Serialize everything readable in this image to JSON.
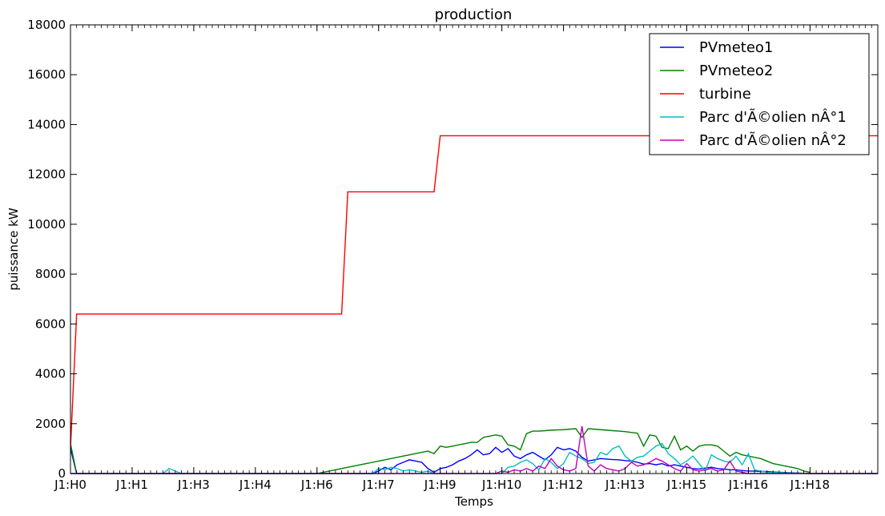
{
  "chart_data": {
    "type": "line",
    "title": "production",
    "xlabel": "Temps",
    "ylabel": "puissance kW",
    "xlim": [
      0,
      131
    ],
    "ylim": [
      0,
      18000
    ],
    "yticks": [
      0,
      2000,
      4000,
      6000,
      8000,
      10000,
      12000,
      14000,
      16000,
      18000
    ],
    "xticks": [
      {
        "x": 0,
        "label": "J1:H0"
      },
      {
        "x": 10,
        "label": "J1:H1"
      },
      {
        "x": 20,
        "label": "J1:H3"
      },
      {
        "x": 30,
        "label": "J1:H4"
      },
      {
        "x": 40,
        "label": "J1:H6"
      },
      {
        "x": 50,
        "label": "J1:H7"
      },
      {
        "x": 60,
        "label": "J1:H9"
      },
      {
        "x": 70,
        "label": "J1:H10"
      },
      {
        "x": 80,
        "label": "J1:H12"
      },
      {
        "x": 90,
        "label": "J1:H13"
      },
      {
        "x": 100,
        "label": "J1:H15"
      },
      {
        "x": 110,
        "label": "J1:H16"
      },
      {
        "x": 120,
        "label": "J1:H18"
      }
    ],
    "legend_position": "top-right",
    "series": [
      {
        "name": "PVmeteo1",
        "color": "#0000ff",
        "points": [
          [
            0,
            1000
          ],
          [
            1,
            0
          ],
          [
            49,
            0
          ],
          [
            50,
            100
          ],
          [
            51,
            250
          ],
          [
            52,
            150
          ],
          [
            53,
            350
          ],
          [
            54,
            450
          ],
          [
            55,
            550
          ],
          [
            56,
            500
          ],
          [
            57,
            450
          ],
          [
            58,
            200
          ],
          [
            59,
            50
          ],
          [
            60,
            200
          ],
          [
            61,
            250
          ],
          [
            62,
            350
          ],
          [
            63,
            500
          ],
          [
            64,
            600
          ],
          [
            65,
            750
          ],
          [
            66,
            950
          ],
          [
            67,
            750
          ],
          [
            68,
            800
          ],
          [
            69,
            1050
          ],
          [
            70,
            850
          ],
          [
            71,
            1000
          ],
          [
            72,
            700
          ],
          [
            73,
            600
          ],
          [
            74,
            750
          ],
          [
            75,
            850
          ],
          [
            76,
            700
          ],
          [
            77,
            550
          ],
          [
            78,
            750
          ],
          [
            79,
            1050
          ],
          [
            80,
            950
          ],
          [
            81,
            1000
          ],
          [
            82,
            900
          ],
          [
            83,
            650
          ],
          [
            84,
            500
          ],
          [
            85,
            550
          ],
          [
            86,
            600
          ],
          [
            87,
            580
          ],
          [
            88,
            560
          ],
          [
            89,
            550
          ],
          [
            90,
            520
          ],
          [
            91,
            500
          ],
          [
            92,
            450
          ],
          [
            93,
            380
          ],
          [
            94,
            400
          ],
          [
            95,
            350
          ],
          [
            96,
            400
          ],
          [
            97,
            300
          ],
          [
            98,
            350
          ],
          [
            99,
            300
          ],
          [
            100,
            250
          ],
          [
            101,
            200
          ],
          [
            102,
            180
          ],
          [
            103,
            220
          ],
          [
            104,
            250
          ],
          [
            105,
            200
          ],
          [
            106,
            180
          ],
          [
            107,
            150
          ],
          [
            108,
            150
          ],
          [
            109,
            120
          ],
          [
            110,
            100
          ],
          [
            111,
            100
          ],
          [
            112,
            80
          ],
          [
            113,
            80
          ],
          [
            114,
            60
          ],
          [
            115,
            50
          ],
          [
            116,
            40
          ],
          [
            117,
            30
          ],
          [
            118,
            20
          ],
          [
            119,
            10
          ],
          [
            120,
            0
          ],
          [
            131,
            0
          ]
        ]
      },
      {
        "name": "PVmeteo2",
        "color": "#008000",
        "points": [
          [
            0,
            1200
          ],
          [
            1,
            0
          ],
          [
            40,
            0
          ],
          [
            41,
            50
          ],
          [
            42,
            100
          ],
          [
            43,
            150
          ],
          [
            44,
            200
          ],
          [
            45,
            250
          ],
          [
            46,
            300
          ],
          [
            47,
            350
          ],
          [
            48,
            400
          ],
          [
            49,
            450
          ],
          [
            50,
            500
          ],
          [
            51,
            550
          ],
          [
            52,
            600
          ],
          [
            53,
            650
          ],
          [
            54,
            700
          ],
          [
            55,
            750
          ],
          [
            56,
            800
          ],
          [
            57,
            850
          ],
          [
            58,
            900
          ],
          [
            59,
            800
          ],
          [
            60,
            1100
          ],
          [
            61,
            1050
          ],
          [
            62,
            1100
          ],
          [
            63,
            1150
          ],
          [
            64,
            1200
          ],
          [
            65,
            1250
          ],
          [
            66,
            1250
          ],
          [
            67,
            1450
          ],
          [
            68,
            1500
          ],
          [
            69,
            1550
          ],
          [
            70,
            1500
          ],
          [
            71,
            1150
          ],
          [
            72,
            1100
          ],
          [
            73,
            950
          ],
          [
            74,
            1600
          ],
          [
            75,
            1700
          ],
          [
            76,
            1700
          ],
          [
            77,
            1720
          ],
          [
            78,
            1740
          ],
          [
            79,
            1750
          ],
          [
            80,
            1760
          ],
          [
            81,
            1780
          ],
          [
            82,
            1800
          ],
          [
            83,
            1450
          ],
          [
            84,
            1800
          ],
          [
            85,
            1780
          ],
          [
            86,
            1760
          ],
          [
            87,
            1740
          ],
          [
            88,
            1720
          ],
          [
            89,
            1700
          ],
          [
            90,
            1680
          ],
          [
            91,
            1650
          ],
          [
            92,
            1620
          ],
          [
            93,
            1100
          ],
          [
            94,
            1550
          ],
          [
            95,
            1500
          ],
          [
            96,
            1050
          ],
          [
            97,
            1000
          ],
          [
            98,
            1500
          ],
          [
            99,
            950
          ],
          [
            100,
            1100
          ],
          [
            101,
            900
          ],
          [
            102,
            1100
          ],
          [
            103,
            1150
          ],
          [
            104,
            1150
          ],
          [
            105,
            1100
          ],
          [
            106,
            900
          ],
          [
            107,
            700
          ],
          [
            108,
            850
          ],
          [
            109,
            750
          ],
          [
            110,
            700
          ],
          [
            111,
            650
          ],
          [
            112,
            600
          ],
          [
            113,
            500
          ],
          [
            114,
            400
          ],
          [
            115,
            350
          ],
          [
            116,
            300
          ],
          [
            117,
            250
          ],
          [
            118,
            200
          ],
          [
            119,
            100
          ],
          [
            120,
            50
          ]
        ]
      },
      {
        "name": "turbine",
        "color": "#ff0000",
        "points": [
          [
            0,
            1000
          ],
          [
            1,
            6400
          ],
          [
            44,
            6400
          ],
          [
            45,
            11300
          ],
          [
            59,
            11300
          ],
          [
            60,
            13550
          ],
          [
            131,
            13550
          ]
        ]
      },
      {
        "name": "Parc d'Ã©olien nÂ°1",
        "color": "#00bfbf",
        "points": [
          [
            0,
            0
          ],
          [
            15,
            0
          ],
          [
            16,
            200
          ],
          [
            17,
            100
          ],
          [
            18,
            0
          ],
          [
            49,
            0
          ],
          [
            50,
            200
          ],
          [
            51,
            150
          ],
          [
            52,
            250
          ],
          [
            53,
            200
          ],
          [
            54,
            100
          ],
          [
            55,
            150
          ],
          [
            56,
            100
          ],
          [
            57,
            50
          ],
          [
            58,
            100
          ],
          [
            59,
            0
          ],
          [
            70,
            0
          ],
          [
            71,
            250
          ],
          [
            72,
            300
          ],
          [
            73,
            450
          ],
          [
            74,
            550
          ],
          [
            75,
            400
          ],
          [
            76,
            150
          ],
          [
            77,
            600
          ],
          [
            78,
            450
          ],
          [
            79,
            200
          ],
          [
            80,
            400
          ],
          [
            81,
            850
          ],
          [
            82,
            700
          ],
          [
            83,
            600
          ],
          [
            84,
            400
          ],
          [
            85,
            450
          ],
          [
            86,
            850
          ],
          [
            87,
            750
          ],
          [
            88,
            1000
          ],
          [
            89,
            1100
          ],
          [
            90,
            700
          ],
          [
            91,
            500
          ],
          [
            92,
            650
          ],
          [
            93,
            700
          ],
          [
            94,
            900
          ],
          [
            95,
            1100
          ],
          [
            96,
            1200
          ],
          [
            97,
            800
          ],
          [
            98,
            600
          ],
          [
            99,
            350
          ],
          [
            100,
            500
          ],
          [
            101,
            700
          ],
          [
            102,
            400
          ],
          [
            103,
            100
          ],
          [
            104,
            750
          ],
          [
            105,
            600
          ],
          [
            106,
            500
          ],
          [
            107,
            450
          ],
          [
            108,
            700
          ],
          [
            109,
            350
          ],
          [
            110,
            800
          ],
          [
            111,
            150
          ],
          [
            112,
            100
          ],
          [
            113,
            50
          ],
          [
            120,
            0
          ],
          [
            131,
            0
          ]
        ]
      },
      {
        "name": "Parc d'Ã©olien nÂ°2",
        "color": "#bf00bf",
        "points": [
          [
            0,
            0
          ],
          [
            69,
            0
          ],
          [
            70,
            100
          ],
          [
            71,
            50
          ],
          [
            72,
            150
          ],
          [
            73,
            100
          ],
          [
            74,
            200
          ],
          [
            75,
            100
          ],
          [
            76,
            300
          ],
          [
            77,
            200
          ],
          [
            78,
            600
          ],
          [
            79,
            300
          ],
          [
            80,
            150
          ],
          [
            81,
            100
          ],
          [
            82,
            200
          ],
          [
            83,
            1900
          ],
          [
            84,
            300
          ],
          [
            85,
            100
          ],
          [
            86,
            350
          ],
          [
            87,
            200
          ],
          [
            88,
            150
          ],
          [
            89,
            100
          ],
          [
            90,
            200
          ],
          [
            91,
            450
          ],
          [
            92,
            300
          ],
          [
            93,
            350
          ],
          [
            94,
            450
          ],
          [
            95,
            600
          ],
          [
            96,
            500
          ],
          [
            97,
            350
          ],
          [
            98,
            200
          ],
          [
            99,
            100
          ],
          [
            100,
            400
          ],
          [
            101,
            150
          ],
          [
            102,
            100
          ],
          [
            103,
            150
          ],
          [
            104,
            200
          ],
          [
            105,
            100
          ],
          [
            106,
            150
          ],
          [
            107,
            500
          ],
          [
            108,
            100
          ],
          [
            109,
            50
          ],
          [
            110,
            0
          ],
          [
            131,
            0
          ]
        ]
      }
    ]
  }
}
